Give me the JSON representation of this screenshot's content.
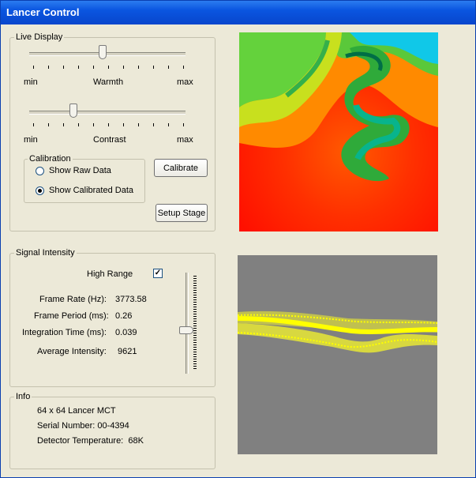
{
  "window": {
    "title": "Lancer Control"
  },
  "live_display": {
    "title": "Live Display",
    "warmth": {
      "label": "Warmth",
      "min_label": "min",
      "max_label": "max",
      "value": 0.47
    },
    "contrast": {
      "label": "Contrast",
      "min_label": "min",
      "max_label": "max",
      "value": 0.27
    },
    "calibration": {
      "title": "Calibration",
      "options": [
        "Show Raw Data",
        "Show Calibrated Data"
      ],
      "selected": 1
    },
    "calibrate_button": "Calibrate",
    "setup_stage_button": "Setup Stage"
  },
  "signal_intensity": {
    "title": "Signal Intensity",
    "high_range_label": "High Range",
    "high_range_checked": true,
    "rows": [
      {
        "label": "Frame Rate (Hz):",
        "value": "3773.58"
      },
      {
        "label": "Frame Period (ms):",
        "value": "0.26"
      },
      {
        "label": "Integration Time (ms):",
        "value": "0.039"
      },
      {
        "label": "Average Intensity:",
        "value": "9621"
      }
    ],
    "slider_value": 0.58
  },
  "info": {
    "title": "Info",
    "model": "64 x 64 Lancer MCT",
    "serial": "Serial Number: 00-4394",
    "temperature": "Detector Temperature:  68K"
  },
  "colors": {
    "plot_background": "#808080",
    "plot_points": "#ffff00",
    "heat_hot": "#ff0000",
    "heat_cold": "#00b8f0"
  }
}
